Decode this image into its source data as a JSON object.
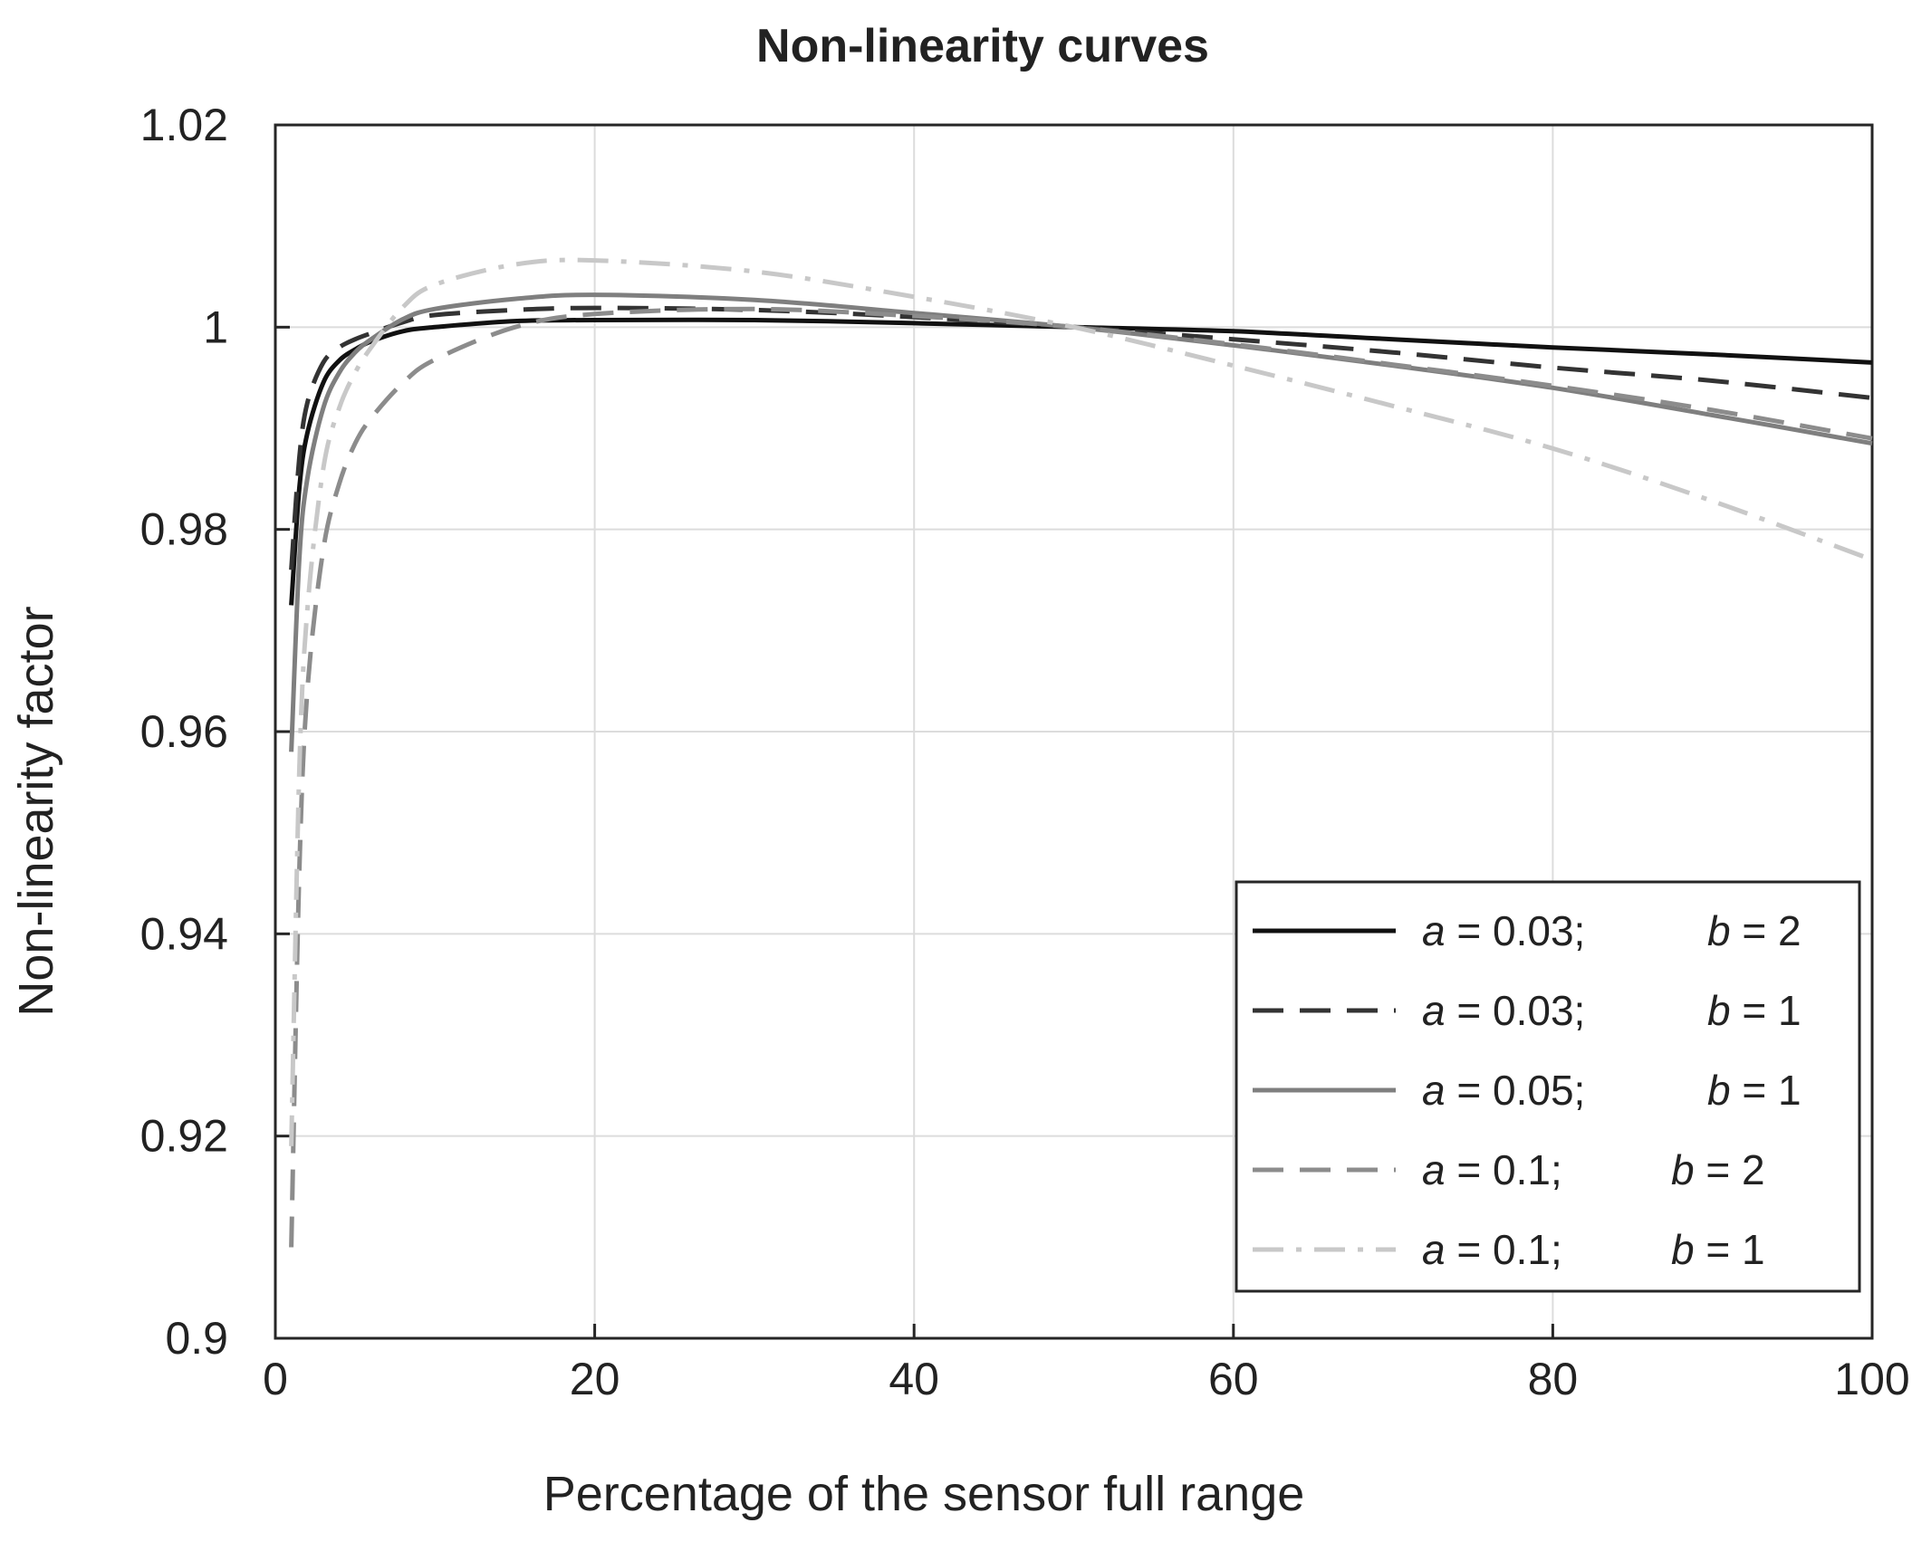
{
  "chart_data": {
    "type": "line",
    "title": "Non-linearity curves",
    "xlabel": "Percentage of the sensor full range",
    "ylabel": "Non-linearity factor",
    "xlim": [
      0,
      100
    ],
    "ylim": [
      0.9,
      1.02
    ],
    "x_ticks": [
      0,
      20,
      40,
      60,
      80,
      100
    ],
    "x_tick_labels": [
      "0",
      "20",
      "40",
      "60",
      "80",
      "100"
    ],
    "y_ticks": [
      0.9,
      0.92,
      0.94,
      0.96,
      0.98,
      1.0,
      1.02
    ],
    "y_tick_labels": [
      "0.9",
      "0.92",
      "0.94",
      "0.96",
      "0.98",
      "1",
      "1.02"
    ],
    "grid": true,
    "legend_position": "bottom-right",
    "series": [
      {
        "name": "a = 0.03; b = 2",
        "a_label": "a",
        "a_value": " = 0.03;",
        "b_label": "b",
        "b_value": " = 2",
        "color": "#111111",
        "dash": "solid",
        "x": [
          1,
          1.5,
          2,
          3,
          4,
          5,
          6,
          8,
          10,
          15,
          20,
          30,
          40,
          50,
          60,
          70,
          80,
          90,
          100
        ],
        "y": [
          0.9725,
          0.984,
          0.9895,
          0.9945,
          0.9967,
          0.9978,
          0.9986,
          0.9996,
          1.0,
          1.0006,
          1.0007,
          1.0007,
          1.0004,
          1.0,
          0.9996,
          0.9988,
          0.998,
          0.9973,
          0.9965
        ]
      },
      {
        "name": "a = 0.03; b = 1",
        "a_label": "a",
        "a_value": " = 0.03;",
        "b_label": "b",
        "b_value": " = 1",
        "color": "#333333",
        "dash": "dashed",
        "x": [
          1,
          1.5,
          2,
          3,
          4,
          5,
          6,
          8,
          10,
          15,
          20,
          30,
          40,
          50,
          60,
          70,
          80,
          90,
          100
        ],
        "y": [
          0.976,
          0.987,
          0.9925,
          0.9965,
          0.998,
          0.9988,
          0.9994,
          1.0005,
          1.0012,
          1.0017,
          1.0019,
          1.0017,
          1.001,
          1.0,
          0.9988,
          0.9975,
          0.996,
          0.9947,
          0.993
        ]
      },
      {
        "name": "a = 0.05; b = 1",
        "a_label": "a",
        "a_value": " = 0.05;",
        "b_label": "b",
        "b_value": " = 1",
        "color": "#7f7f7f",
        "dash": "solid",
        "x": [
          1,
          1.5,
          2,
          3,
          4,
          5,
          6,
          8,
          10,
          15,
          20,
          30,
          40,
          50,
          60,
          70,
          80,
          90,
          100
        ],
        "y": [
          0.958,
          0.977,
          0.985,
          0.992,
          0.9955,
          0.9975,
          0.9988,
          1.0008,
          1.0018,
          1.0028,
          1.0032,
          1.0027,
          1.0014,
          1.0,
          0.9982,
          0.9962,
          0.994,
          0.9913,
          0.9885
        ]
      },
      {
        "name": "a = 0.1; b = 2",
        "a_label": "a",
        "a_value": " = 0.1;",
        "b_label": "b",
        "b_value": " = 2",
        "color": "#8c8c8c",
        "dash": "dashed",
        "x": [
          1,
          1.5,
          2,
          3,
          4,
          5,
          6,
          8,
          10,
          15,
          20,
          30,
          40,
          50,
          60,
          70,
          80,
          90,
          100
        ],
        "y": [
          0.909,
          0.946,
          0.964,
          0.978,
          0.9845,
          0.9885,
          0.991,
          0.9945,
          0.9968,
          1.0,
          1.0013,
          1.0018,
          1.0011,
          1.0,
          0.9983,
          0.9963,
          0.9942,
          0.9918,
          0.989
        ]
      },
      {
        "name": "a = 0.1; b = 1",
        "a_label": "a",
        "a_value": " = 0.1;",
        "b_label": "b",
        "b_value": " = 1",
        "color": "#c8c8c8",
        "dash": "dashdot",
        "x": [
          1,
          1.5,
          2,
          3,
          4,
          5,
          6,
          8,
          10,
          15,
          20,
          30,
          40,
          50,
          60,
          70,
          80,
          90,
          100
        ],
        "y": [
          0.919,
          0.956,
          0.972,
          0.986,
          0.992,
          0.9955,
          0.998,
          1.002,
          1.0042,
          1.0062,
          1.0066,
          1.0055,
          1.003,
          1.0,
          0.9962,
          0.9922,
          0.988,
          0.9828,
          0.977
        ]
      }
    ]
  }
}
